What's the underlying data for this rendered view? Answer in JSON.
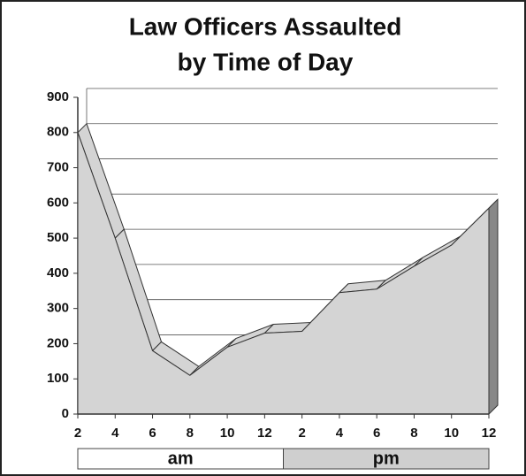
{
  "chart_data": {
    "type": "area3d",
    "title": [
      "Law Officers Assaulted",
      "by Time of Day"
    ],
    "categories": [
      "2",
      "4",
      "6",
      "8",
      "10",
      "12",
      "2",
      "4",
      "6",
      "8",
      "10",
      "12"
    ],
    "values": [
      800,
      500,
      180,
      110,
      190,
      230,
      235,
      345,
      355,
      420,
      480,
      585
    ],
    "x_groups": [
      "am",
      "pm"
    ],
    "color": "#d4d4d4",
    "ylim": [
      0,
      900
    ],
    "yticks": [
      0,
      100,
      200,
      300,
      400,
      500,
      600,
      700,
      800,
      900
    ],
    "grid": true
  }
}
